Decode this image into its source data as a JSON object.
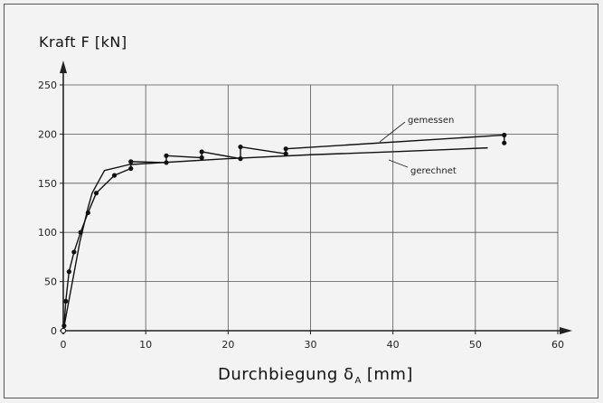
{
  "chart_data": {
    "type": "line",
    "ylabel": "Kraft F [kN]",
    "xlabel": {
      "main": "Durchbiegung δ",
      "subscript": "A",
      "unit": "[mm]"
    },
    "xlim": [
      0,
      60
    ],
    "ylim": [
      0,
      250
    ],
    "xticks": [
      0,
      10,
      20,
      30,
      40,
      50,
      60
    ],
    "yticks": [
      0,
      50,
      100,
      150,
      200,
      250
    ],
    "grid": true,
    "series": [
      {
        "name": "gemessen",
        "markers": true,
        "points": [
          [
            0,
            0
          ],
          [
            0.1,
            5
          ],
          [
            0.3,
            30
          ],
          [
            0.7,
            60
          ],
          [
            1.3,
            80
          ],
          [
            2.1,
            100
          ],
          [
            3,
            120
          ],
          [
            4,
            140
          ],
          [
            6.2,
            158
          ],
          [
            8.2,
            165
          ],
          [
            8.2,
            172
          ],
          [
            12.5,
            171
          ],
          [
            12.5,
            178
          ],
          [
            16.8,
            176
          ],
          [
            16.8,
            182
          ],
          [
            21.5,
            175
          ],
          [
            21.5,
            187
          ],
          [
            27,
            180
          ],
          [
            27,
            185
          ],
          [
            53.5,
            199
          ],
          [
            53.5,
            191
          ]
        ]
      },
      {
        "name": "gerechnet",
        "markers": false,
        "points": [
          [
            0,
            0
          ],
          [
            1,
            45
          ],
          [
            2,
            90
          ],
          [
            3,
            125
          ],
          [
            3.5,
            140
          ],
          [
            5,
            163
          ],
          [
            8,
            169
          ],
          [
            20,
            175
          ],
          [
            30,
            179
          ],
          [
            40,
            182
          ],
          [
            51.5,
            186
          ]
        ]
      }
    ]
  }
}
